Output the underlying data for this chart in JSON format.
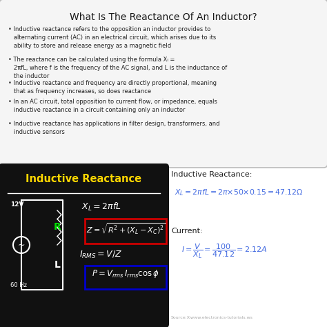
{
  "title": "What Is The Reactance Of An Inductor?",
  "bg_color": "#ffffff",
  "bullets": [
    "Inductive reactance refers to the opposition an inductor provides to\n  alternating current (AC) in an electrical circuit, which arises due to its\n  ability to store and release energy as a magnetic field",
    "The reactance can be calculated using the formula Xₗ =\n  2πfL, where f is the frequency of the AC signal, and L is the inductance of\n  the inductor",
    "Inductive reactance and frequency are directly proportional, meaning\n  that as frequency increases, so does reactance",
    "In an AC circuit, total opposition to current flow, or impedance, equals\n  inductive reactance in a circuit containing only an inductor",
    "Inductive reactance has applications in filter design, transformers, and\n  inductive sensors"
  ],
  "black_box_color": "#111111",
  "black_box_title": "Inductive Reactance",
  "black_box_title_color": "#FFD700",
  "formula_color": "#4169E1",
  "red_box_color": "#cc0000",
  "blue_box_color": "#0000cc",
  "source_text": "Source:Xₗwww.electronics-tutorials.ws"
}
